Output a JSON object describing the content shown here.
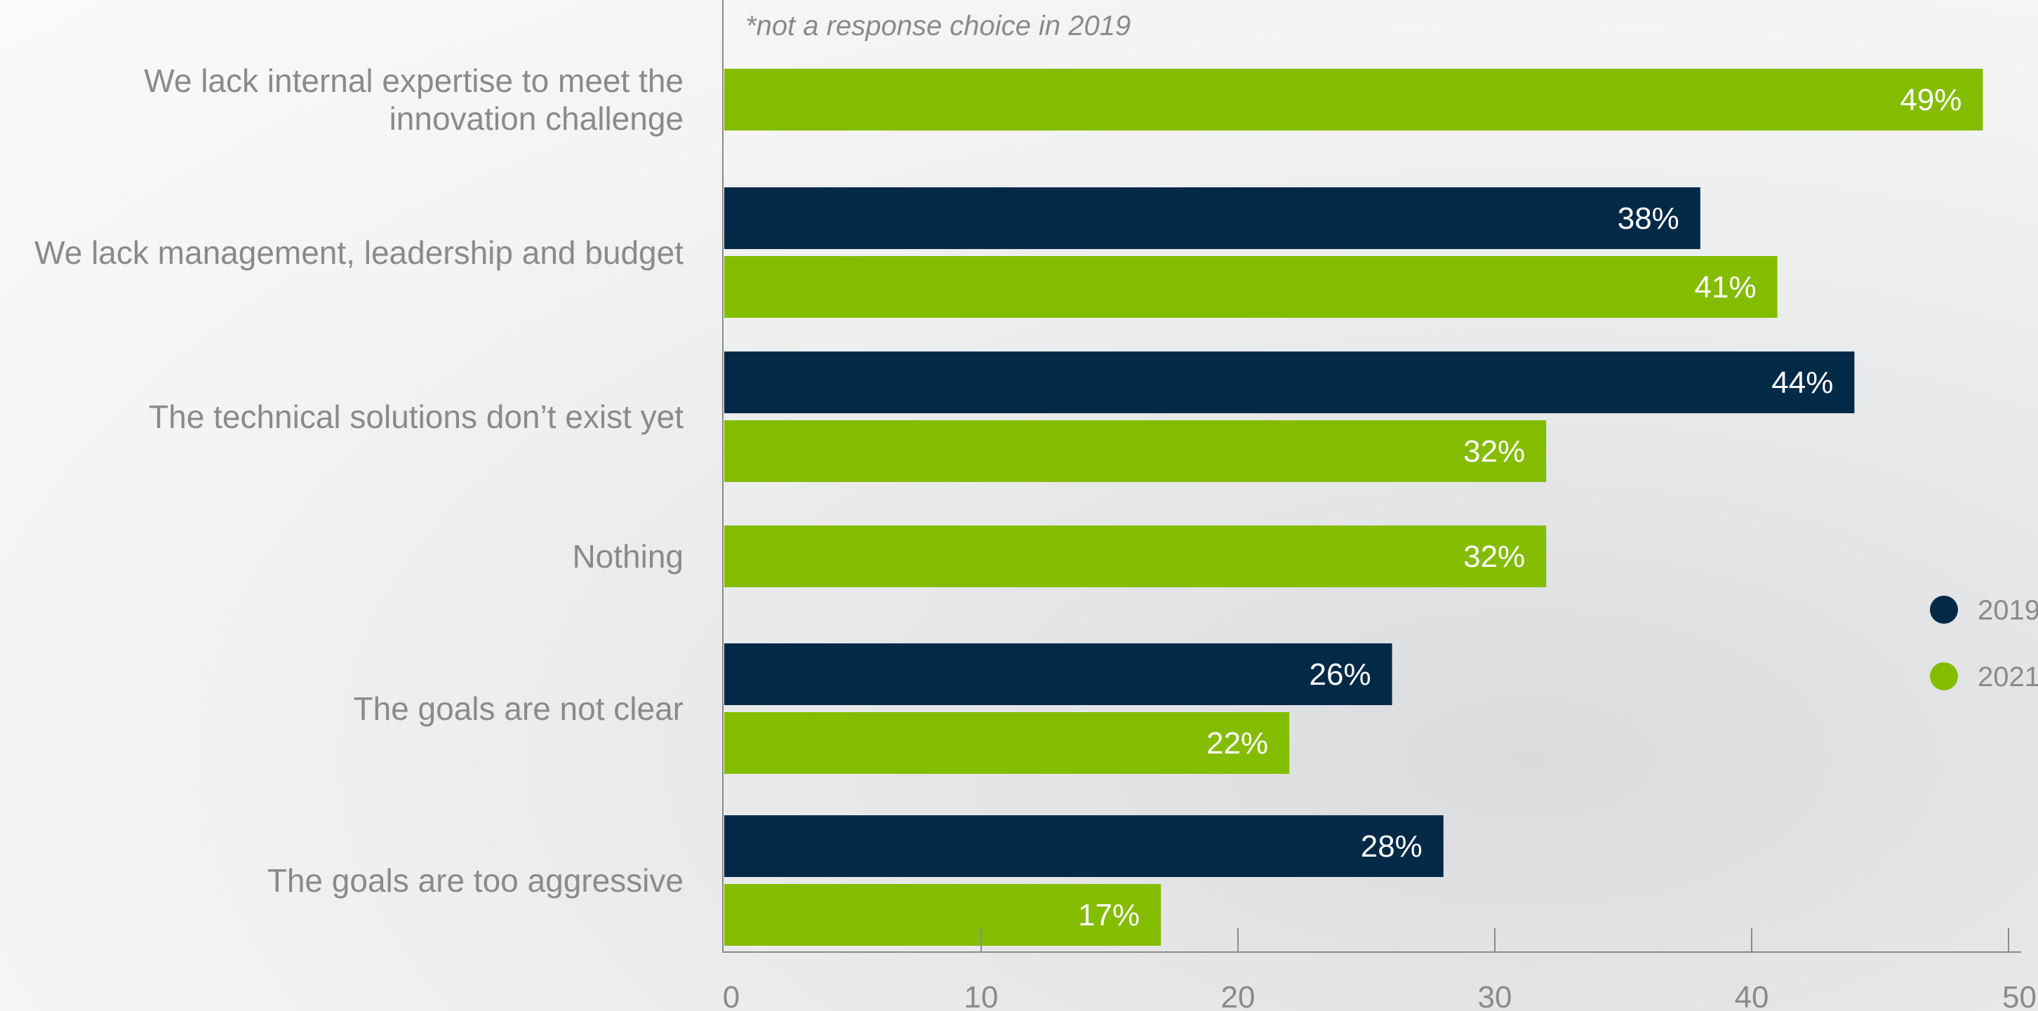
{
  "chart_data": {
    "type": "bar",
    "orientation": "horizontal",
    "note": "*not a response choice in 2019",
    "categories": [
      [
        "We lack internal expertise to meet the",
        "innovation challenge"
      ],
      [
        "We lack management, leadership and budget"
      ],
      [
        "The technical solutions don’t exist yet"
      ],
      [
        "Nothing"
      ],
      [
        "The goals are not clear"
      ],
      [
        "The goals are too aggressive"
      ]
    ],
    "series": [
      {
        "name": "2019",
        "color": "#022a47",
        "values": [
          null,
          38,
          44,
          null,
          26,
          28
        ]
      },
      {
        "name": "2021",
        "color": "#84bc00",
        "values": [
          49,
          41,
          32,
          32,
          22,
          17
        ]
      }
    ],
    "value_suffix": "%",
    "xlim": [
      0,
      50
    ],
    "xticks": [
      0,
      10,
      20,
      30,
      40,
      50
    ],
    "grid": false,
    "legend_position": "right"
  }
}
